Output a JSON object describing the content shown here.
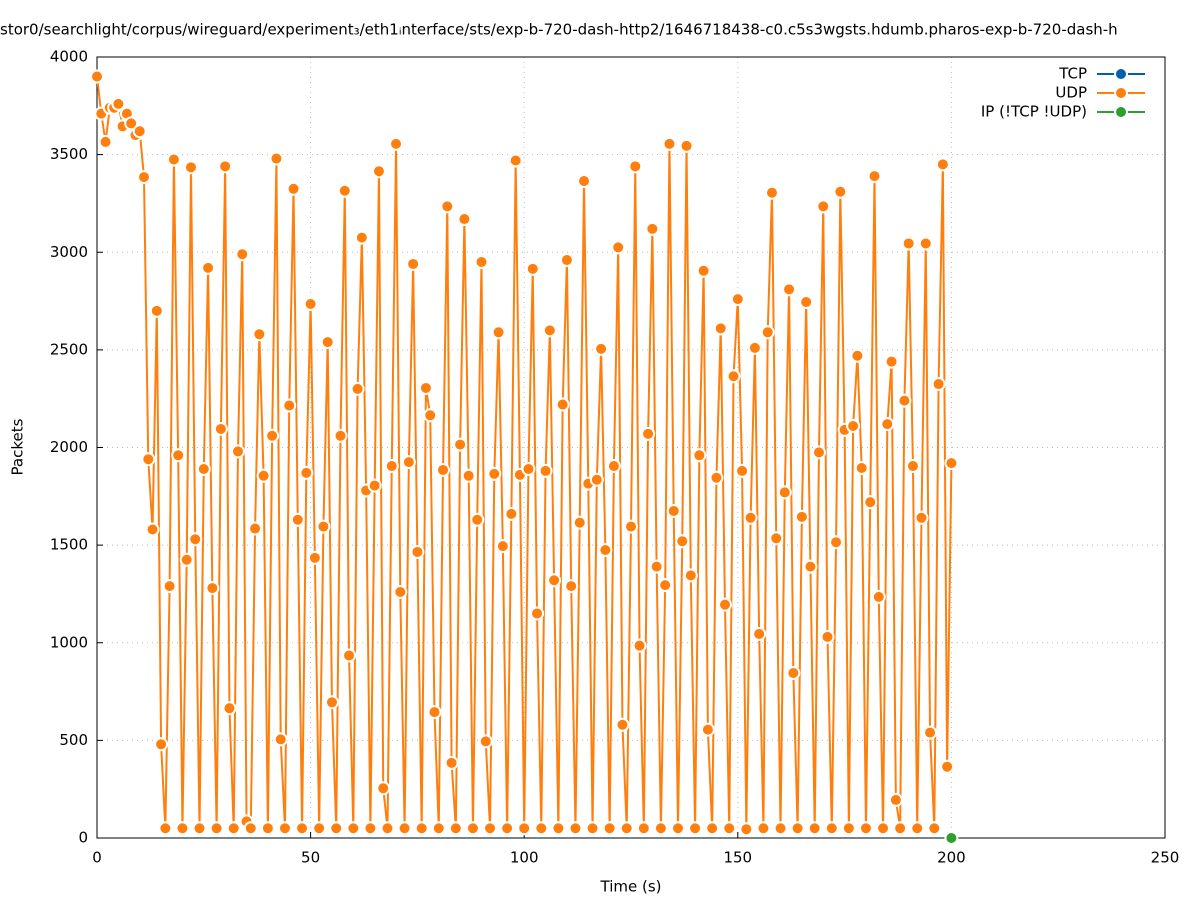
{
  "chart_data": {
    "type": "line",
    "title": "stor0/searchlight/corpus/wireguard/experiment₃/eth1ᵢnterface/sts/exp-b-720-dash-http2/1646718438-c0.c5s3wgsts.hdumb.pharos-exp-b-720-dash-h",
    "x_label": "Time (s)",
    "y_label": "Packets",
    "xlim": [
      0,
      250
    ],
    "xticks": [
      0,
      50,
      100,
      150,
      200,
      250
    ],
    "ylim": [
      0,
      4000
    ],
    "yticks": [
      0,
      500,
      1000,
      1500,
      2000,
      2500,
      3000,
      3500,
      4000
    ],
    "grid": true,
    "legend": "top-right",
    "series": [
      {
        "name": "TCP",
        "color": "#0060ad",
        "x": [],
        "values": []
      },
      {
        "name": "UDP",
        "color": "#ff7f0e",
        "x": [
          0,
          1,
          2,
          3,
          4,
          5,
          6,
          7,
          8,
          9,
          10,
          11,
          12,
          13,
          14,
          15,
          16,
          17,
          18,
          19,
          20,
          21,
          22,
          23,
          24,
          25,
          26,
          27,
          28,
          29,
          30,
          31,
          32,
          33,
          34,
          35,
          36,
          37,
          38,
          39,
          40,
          41,
          42,
          43,
          44,
          45,
          46,
          47,
          48,
          49,
          50,
          51,
          52,
          53,
          54,
          55,
          56,
          57,
          58,
          59,
          60,
          61,
          62,
          63,
          64,
          65,
          66,
          67,
          68,
          69,
          70,
          71,
          72,
          73,
          74,
          75,
          76,
          77,
          78,
          79,
          80,
          81,
          82,
          83,
          84,
          85,
          86,
          87,
          88,
          89,
          90,
          91,
          92,
          93,
          94,
          95,
          96,
          97,
          98,
          99,
          100,
          101,
          102,
          103,
          104,
          105,
          106,
          107,
          108,
          109,
          110,
          111,
          112,
          113,
          114,
          115,
          116,
          117,
          118,
          119,
          120,
          121,
          122,
          123,
          124,
          125,
          126,
          127,
          128,
          129,
          130,
          131,
          132,
          133,
          134,
          135,
          136,
          137,
          138,
          139,
          140,
          141,
          142,
          143,
          144,
          145,
          146,
          147,
          148,
          149,
          150,
          151,
          152,
          153,
          154,
          155,
          156,
          157,
          158,
          159,
          160,
          161,
          162,
          163,
          164,
          165,
          166,
          167,
          168,
          169,
          170,
          171,
          172,
          173,
          174,
          175,
          176,
          177,
          178,
          179,
          180,
          181,
          182,
          183,
          184,
          185,
          186,
          187,
          188,
          189,
          190,
          191,
          192,
          193,
          194,
          195,
          196,
          197,
          198,
          199,
          200
        ],
        "values": [
          3900,
          3710,
          3565,
          3740,
          3740,
          3760,
          3645,
          3710,
          3660,
          3600,
          3620,
          3385,
          1940,
          1580,
          2700,
          480,
          50,
          1290,
          3475,
          1960,
          50,
          1425,
          3435,
          1530,
          50,
          1890,
          2920,
          1280,
          50,
          2095,
          3440,
          665,
          50,
          1980,
          2990,
          85,
          50,
          1585,
          2580,
          1855,
          50,
          2060,
          3480,
          505,
          50,
          2215,
          3325,
          1630,
          50,
          1870,
          2735,
          1435,
          50,
          1595,
          2540,
          695,
          50,
          2060,
          3315,
          935,
          50,
          2300,
          3075,
          1780,
          50,
          1805,
          3415,
          255,
          50,
          1905,
          3555,
          1260,
          50,
          1925,
          2940,
          1465,
          50,
          2305,
          2165,
          645,
          50,
          1885,
          3235,
          385,
          50,
          2015,
          3170,
          1855,
          50,
          1630,
          2950,
          495,
          50,
          1865,
          2590,
          1495,
          50,
          1660,
          3470,
          1860,
          50,
          1890,
          2915,
          1150,
          50,
          1880,
          2600,
          1320,
          50,
          2220,
          2960,
          1290,
          50,
          1615,
          3365,
          1815,
          50,
          1835,
          2505,
          1475,
          50,
          1905,
          3025,
          580,
          50,
          1595,
          3440,
          985,
          50,
          2070,
          3120,
          1390,
          50,
          1295,
          3555,
          1675,
          50,
          1520,
          3545,
          1345,
          50,
          1960,
          2905,
          555,
          50,
          1845,
          2610,
          1195,
          50,
          2365,
          2760,
          1880,
          45,
          1640,
          2510,
          1045,
          50,
          2590,
          3305,
          1535,
          50,
          1770,
          2810,
          845,
          50,
          1645,
          2745,
          1390,
          50,
          1975,
          3235,
          1030,
          50,
          1515,
          3310,
          2090,
          50,
          2110,
          2470,
          1895,
          50,
          1720,
          3390,
          1235,
          50,
          2120,
          2440,
          195,
          50,
          2240,
          3045,
          1905,
          50,
          1640,
          3045,
          540,
          50,
          2325,
          3450,
          365,
          1920
        ]
      },
      {
        "name": "IP (!TCP  !UDP)",
        "color": "#2ca02c",
        "x": [
          200
        ],
        "values": [
          0
        ]
      }
    ]
  }
}
